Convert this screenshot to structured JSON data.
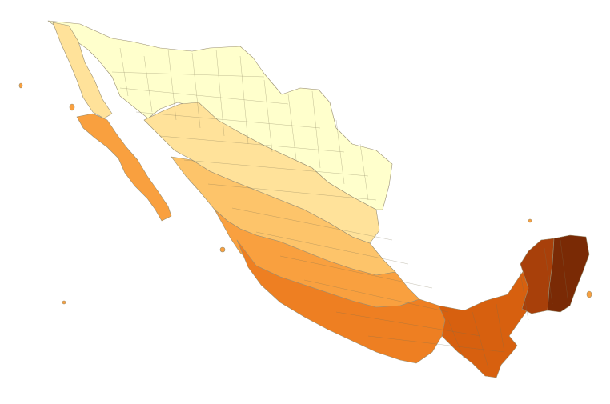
{
  "map": {
    "subject": "mexico-municipalities-choropleth",
    "legend_shown": false,
    "colors": {
      "class_1": "#ffffcc",
      "class_2": "#ffe29a",
      "class_3": "#fdc46a",
      "class_4": "#f9a03f",
      "class_5": "#ee7f22",
      "class_6": "#d7600f",
      "class_7": "#a8400a",
      "class_8": "#7a2a05",
      "boundary": "#9a8f72"
    },
    "zones": [
      {
        "name": "zone-north",
        "color_class": "class_1"
      },
      {
        "name": "zone-baja-north",
        "color_class": "class_2"
      },
      {
        "name": "zone-central-north",
        "color_class": "class_2"
      },
      {
        "name": "zone-baja-south",
        "color_class": "class_4"
      },
      {
        "name": "zone-central",
        "color_class": "class_3"
      },
      {
        "name": "zone-south-central",
        "color_class": "class_4"
      },
      {
        "name": "zone-pacific-south",
        "color_class": "class_5"
      },
      {
        "name": "zone-isthmus",
        "color_class": "class_6"
      },
      {
        "name": "zone-yucatan-west",
        "color_class": "class_7"
      },
      {
        "name": "zone-yucatan-east",
        "color_class": "class_8"
      }
    ]
  }
}
